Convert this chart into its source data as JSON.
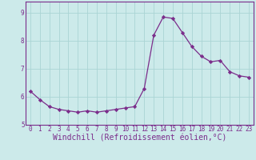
{
  "x": [
    0,
    1,
    2,
    3,
    4,
    5,
    6,
    7,
    8,
    9,
    10,
    11,
    12,
    13,
    14,
    15,
    16,
    17,
    18,
    19,
    20,
    21,
    22,
    23
  ],
  "y": [
    6.2,
    5.9,
    5.65,
    5.55,
    5.5,
    5.45,
    5.5,
    5.45,
    5.5,
    5.55,
    5.6,
    5.65,
    6.3,
    8.2,
    8.85,
    8.8,
    8.3,
    7.8,
    7.45,
    7.25,
    7.3,
    6.9,
    6.75,
    6.7
  ],
  "line_color": "#7b2d8b",
  "marker": "D",
  "marker_size": 2.2,
  "bg_color": "#cceaea",
  "grid_color": "#aad4d4",
  "xlabel": "Windchill (Refroidissement éolien,°C)",
  "ylabel": "",
  "ylim": [
    5.0,
    9.4
  ],
  "xlim": [
    -0.5,
    23.5
  ],
  "yticks": [
    5,
    6,
    7,
    8,
    9
  ],
  "xticks": [
    0,
    1,
    2,
    3,
    4,
    5,
    6,
    7,
    8,
    9,
    10,
    11,
    12,
    13,
    14,
    15,
    16,
    17,
    18,
    19,
    20,
    21,
    22,
    23
  ],
  "tick_fontsize": 5.5,
  "xlabel_fontsize": 7.0,
  "label_color": "#7b2d8b",
  "spine_color": "#7b2d8b"
}
